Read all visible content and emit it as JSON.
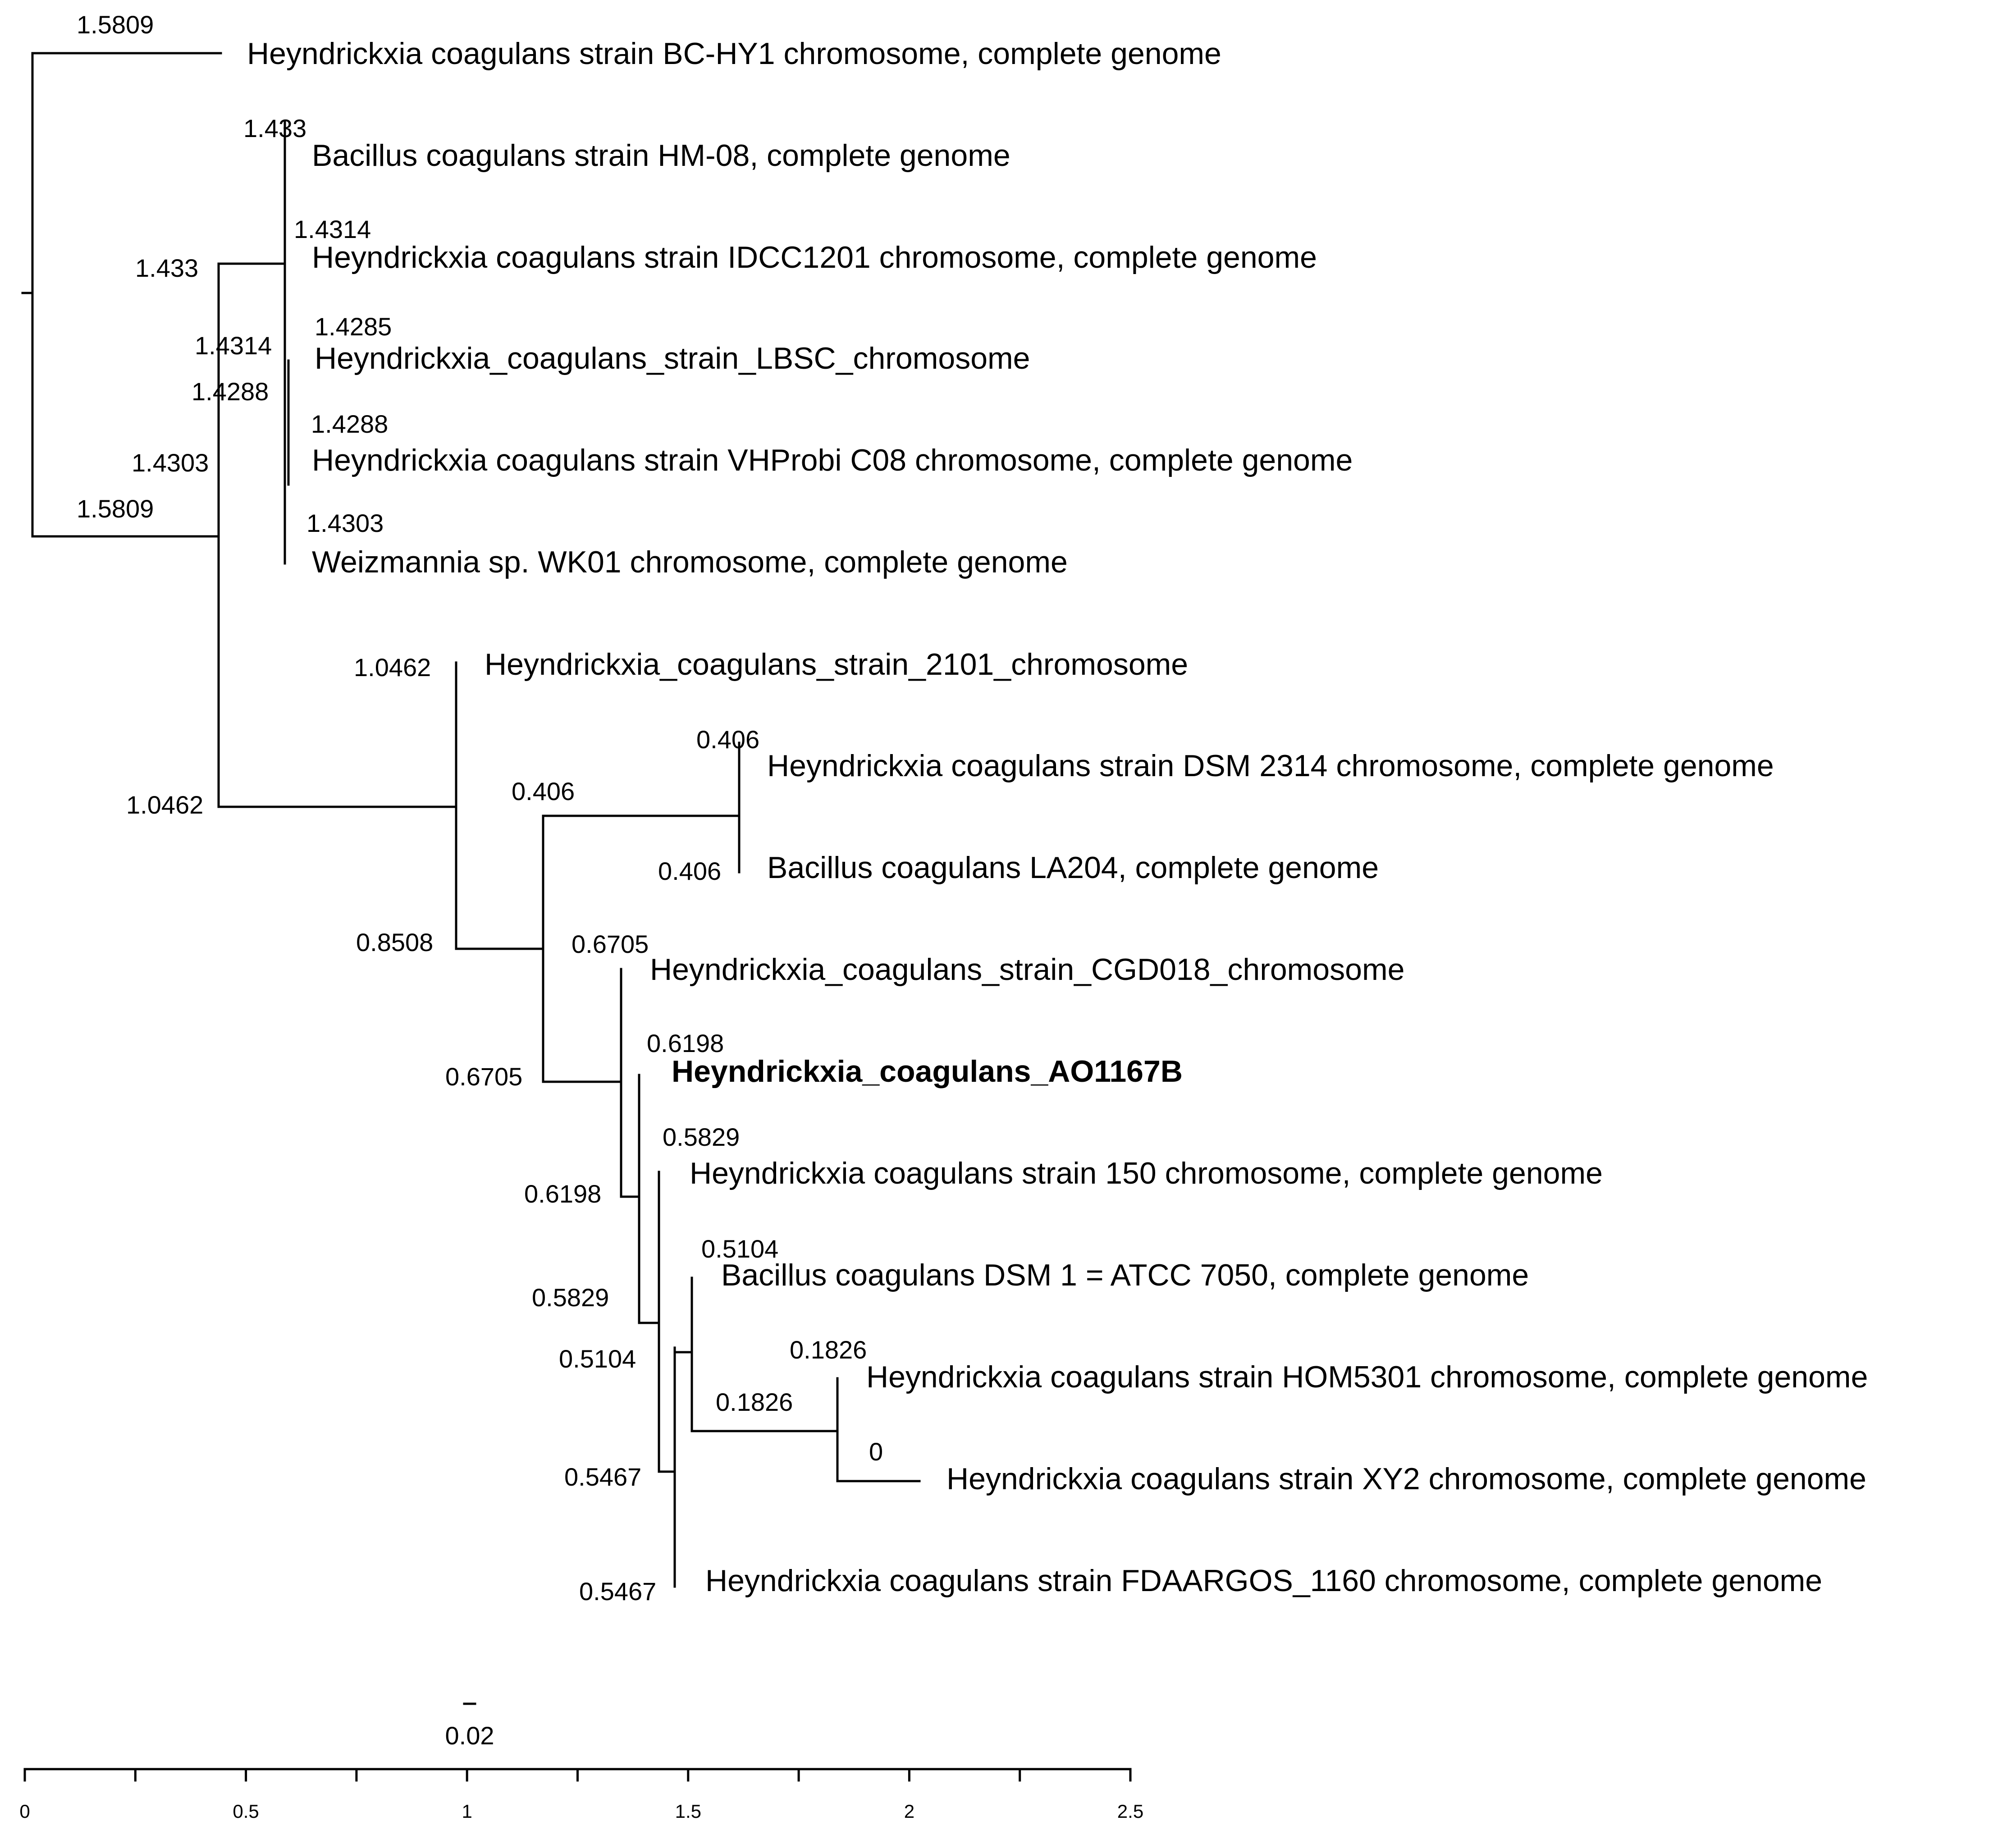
{
  "figure": {
    "type": "phylogenetic_tree",
    "line_color": "#000000",
    "highlight_leaf": "Heyndrickxia_coagulans_AO1167B"
  },
  "leaves": [
    "Heyndrickxia coagulans strain BC-HY1 chromosome, complete genome",
    "Bacillus coagulans strain HM-08, complete genome",
    "Heyndrickxia coagulans strain IDCC1201 chromosome, complete genome",
    "Heyndrickxia_coagulans_strain_LBSC_chromosome",
    "Heyndrickxia coagulans strain VHProbi C08 chromosome, complete genome",
    "Weizmannia sp. WK01 chromosome, complete genome",
    "Heyndrickxia_coagulans_strain_2101_chromosome",
    "Heyndrickxia coagulans strain DSM 2314 chromosome, complete genome",
    "Bacillus coagulans LA204, complete genome",
    "Heyndrickxia_coagulans_strain_CGD018_chromosome",
    "Heyndrickxia_coagulans_AO1167B",
    "Heyndrickxia coagulans strain 150 chromosome, complete genome",
    "Bacillus coagulans DSM 1 = ATCC 7050, complete genome",
    "Heyndrickxia coagulans strain HOM5301 chromosome, complete genome",
    "Heyndrickxia coagulans strain XY2 chromosome, complete genome",
    "Heyndrickxia coagulans strain FDAARGOS_1160 chromosome, complete genome"
  ],
  "node_labels": [
    "1.5809",
    "1.433",
    "1.4314",
    "1.433",
    "1.4285",
    "1.4314",
    "1.4288",
    "1.4288",
    "1.4303",
    "1.5809",
    "1.4303",
    "1.0462",
    "0.406",
    "0.406",
    "1.0462",
    "0.406",
    "0.8508",
    "0.6705",
    "0.6198",
    "0.6705",
    "0.5829",
    "0.6198",
    "0.5104",
    "0.5829",
    "0.5104",
    "0.1826",
    "0.1826",
    "0",
    "0.5467",
    "0.5467"
  ],
  "scale_bar": {
    "label": "0.02",
    "value": 0.02
  },
  "axis": {
    "min": 0,
    "max": 2.5,
    "ticks": [
      0,
      0.25,
      0.5,
      0.75,
      1,
      1.25,
      1.5,
      1.75,
      2,
      2.25,
      2.5
    ],
    "tick_labels": [
      "0",
      "0.5",
      "1",
      "1.5",
      "2",
      "2.5"
    ]
  }
}
